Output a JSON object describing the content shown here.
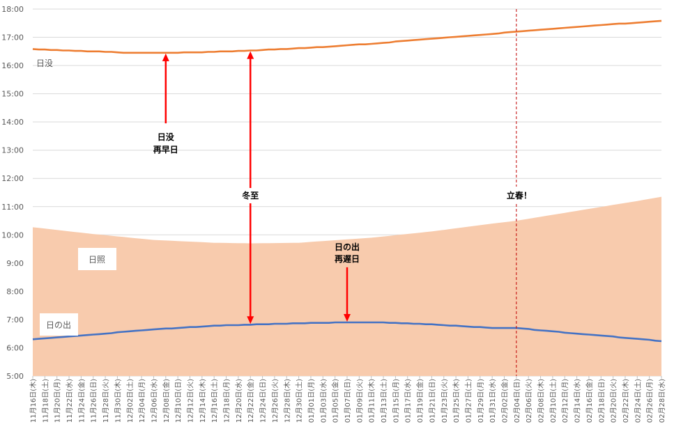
{
  "chart_data": {
    "type": "area",
    "x_start": "2023-11-16",
    "x_end": "2024-02-28",
    "xtick_labels": [
      "11月16日(木)",
      "11月18日(土)",
      "11月20日(月)",
      "11月22日(水)",
      "11月24日(金)",
      "11月26日(日)",
      "11月28日(火)",
      "11月30日(木)",
      "12月02日(土)",
      "12月04日(月)",
      "12月06日(水)",
      "12月08日(金)",
      "12月10日(日)",
      "12月12日(火)",
      "12月14日(木)",
      "12月16日(土)",
      "12月18日(月)",
      "12月20日(水)",
      "12月22日(金)",
      "12月24日(日)",
      "12月26日(火)",
      "12月28日(木)",
      "12月30日(土)",
      "01月01日(月)",
      "01月03日(水)",
      "01月05日(金)",
      "01月07日(日)",
      "01月09日(火)",
      "01月11日(木)",
      "01月13日(土)",
      "01月15日(月)",
      "01月17日(水)",
      "01月19日(金)",
      "01月21日(日)",
      "01月23日(火)",
      "01月25日(木)",
      "01月27日(土)",
      "01月29日(月)",
      "01月31日(水)",
      "02月02日(金)",
      "02月04日(日)",
      "02月06日(火)",
      "02月08日(木)",
      "02月10日(土)",
      "02月12日(月)",
      "02月14日(水)",
      "02月16日(金)",
      "02月18日(日)",
      "02月20日(火)",
      "02月22日(木)",
      "02月24日(土)",
      "02月26日(月)",
      "02月28日(水)"
    ],
    "ytick_labels": [
      "5:00",
      "6:00",
      "7:00",
      "8:00",
      "9:00",
      "10:00",
      "11:00",
      "12:00",
      "13:00",
      "14:00",
      "15:00",
      "16:00",
      "17:00",
      "18:00"
    ],
    "ylim": [
      5,
      18
    ],
    "grid": true,
    "series": [
      {
        "name": "日没",
        "color": "#ED7D31",
        "points": [
          [
            "2023-11-16",
            16.58
          ],
          [
            "2023-11-26",
            16.5
          ],
          [
            "2023-12-02",
            16.45
          ],
          [
            "2023-12-08",
            16.45
          ],
          [
            "2023-12-14",
            16.47
          ],
          [
            "2023-12-22",
            16.53
          ],
          [
            "2024-01-01",
            16.63
          ],
          [
            "2024-01-11",
            16.77
          ],
          [
            "2024-01-21",
            16.95
          ],
          [
            "2024-01-31",
            17.12
          ],
          [
            "2024-02-04",
            17.2
          ],
          [
            "2024-02-14",
            17.37
          ],
          [
            "2024-02-24",
            17.52
          ],
          [
            "2024-02-28",
            17.58
          ]
        ]
      },
      {
        "name": "日の出",
        "color": "#4472C4",
        "points": [
          [
            "2023-11-16",
            6.3
          ],
          [
            "2023-11-26",
            6.47
          ],
          [
            "2023-12-06",
            6.65
          ],
          [
            "2023-12-16",
            6.78
          ],
          [
            "2023-12-22",
            6.82
          ],
          [
            "2024-01-01",
            6.88
          ],
          [
            "2024-01-07",
            6.9
          ],
          [
            "2024-01-13",
            6.9
          ],
          [
            "2024-01-21",
            6.83
          ],
          [
            "2024-01-31",
            6.7
          ],
          [
            "2024-02-04",
            6.7
          ],
          [
            "2024-02-14",
            6.5
          ],
          [
            "2024-02-24",
            6.32
          ],
          [
            "2024-02-28",
            6.23
          ]
        ]
      },
      {
        "name": "日照",
        "color": "#F8CBAD",
        "points": [
          [
            "2023-11-16",
            10.27
          ],
          [
            "2023-11-26",
            10.03
          ],
          [
            "2023-12-06",
            9.82
          ],
          [
            "2023-12-16",
            9.72
          ],
          [
            "2023-12-22",
            9.7
          ],
          [
            "2023-12-30",
            9.72
          ],
          [
            "2024-01-11",
            9.9
          ],
          [
            "2024-01-21",
            10.12
          ],
          [
            "2024-01-31",
            10.4
          ],
          [
            "2024-02-04",
            10.5
          ],
          [
            "2024-02-14",
            10.85
          ],
          [
            "2024-02-24",
            11.2
          ],
          [
            "2024-02-28",
            11.35
          ]
        ]
      }
    ],
    "annotations": [
      {
        "id": "earliest-sunset",
        "lines": [
          "日没",
          "再早日"
        ],
        "date": "2023-12-08",
        "y_from": 13.95,
        "y_to": 16.45
      },
      {
        "id": "winter-solstice",
        "lines": [
          "冬至"
        ],
        "date": "2023-12-22",
        "y_from": 6.82,
        "y_to": 16.53
      },
      {
        "id": "latest-sunrise",
        "lines": [
          "日の出",
          "再遅日"
        ],
        "date": "2024-01-07",
        "y_from": 6.9,
        "y_to": 8.85
      },
      {
        "id": "risshun",
        "lines": [
          "立春！"
        ],
        "date": "2024-02-04"
      }
    ],
    "series_labels": [
      "日没",
      "日照",
      "日の出"
    ]
  }
}
